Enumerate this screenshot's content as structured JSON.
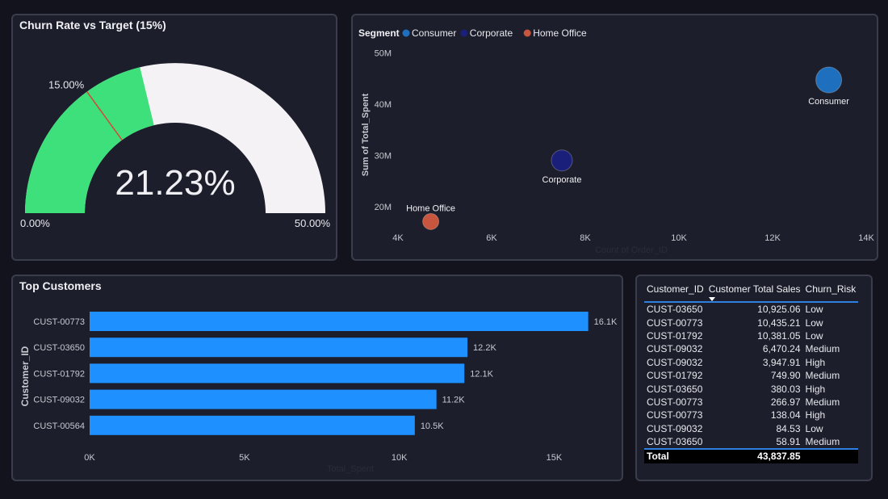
{
  "gauge": {
    "title": "Churn Rate vs Target (15%)",
    "value_label": "21.23%",
    "value": 21.23,
    "target_label": "15.00%",
    "target": 15,
    "min_label": "0.00%",
    "max_label": "50.00%",
    "min": 0,
    "max": 50,
    "fill_color": "#3de07a",
    "track_color": "#f4f2f4",
    "target_color": "#d9453a"
  },
  "scatter": {
    "legend_title": "Segment",
    "ylabel": "Sum of Total_Spent",
    "xlabel": "Count of Order_ID",
    "chart_data": {
      "type": "scatter",
      "x_ticks": [
        "4K",
        "6K",
        "8K",
        "10K",
        "12K",
        "14K"
      ],
      "y_ticks": [
        "20M",
        "30M",
        "40M",
        "50M"
      ],
      "xlim": [
        4000,
        14000
      ],
      "ylim": [
        17000000,
        51000000
      ],
      "series": [
        {
          "name": "Consumer",
          "x": 13200,
          "y": 44700000,
          "color": "#1f6fbf"
        },
        {
          "name": "Corporate",
          "x": 7500,
          "y": 29000000,
          "color": "#1a1f7a"
        },
        {
          "name": "Home Office",
          "x": 4700,
          "y": 17100000,
          "color": "#c8553d"
        }
      ]
    }
  },
  "bars": {
    "title": "Top Customers",
    "ylabel": "Customer_ID",
    "xlabel": "Total_Spent",
    "chart_data": {
      "type": "bar",
      "orientation": "horizontal",
      "categories": [
        "CUST-00773",
        "CUST-03650",
        "CUST-01792",
        "CUST-09032",
        "CUST-00564"
      ],
      "values": [
        16100,
        12200,
        12100,
        11200,
        10500
      ],
      "data_labels": [
        "16.1K",
        "12.2K",
        "12.1K",
        "11.2K",
        "10.5K"
      ],
      "x_ticks": [
        "0K",
        "5K",
        "10K",
        "15K"
      ],
      "xlim": [
        0,
        16500
      ],
      "bar_color": "#1e90ff"
    }
  },
  "table": {
    "headers": [
      "Customer_ID",
      "Customer Total Sales",
      "Churn_Risk"
    ],
    "rows": [
      [
        "CUST-03650",
        "10,925.06",
        "Low"
      ],
      [
        "CUST-00773",
        "10,435.21",
        "Low"
      ],
      [
        "CUST-01792",
        "10,381.05",
        "Low"
      ],
      [
        "CUST-09032",
        "6,470.24",
        "Medium"
      ],
      [
        "CUST-09032",
        "3,947.91",
        "High"
      ],
      [
        "CUST-01792",
        "749.90",
        "Medium"
      ],
      [
        "CUST-03650",
        "380.03",
        "High"
      ],
      [
        "CUST-00773",
        "266.97",
        "Medium"
      ],
      [
        "CUST-00773",
        "138.04",
        "High"
      ],
      [
        "CUST-09032",
        "84.53",
        "Low"
      ],
      [
        "CUST-03650",
        "58.91",
        "Medium"
      ]
    ],
    "total_label": "Total",
    "total_value": "43,837.85"
  }
}
